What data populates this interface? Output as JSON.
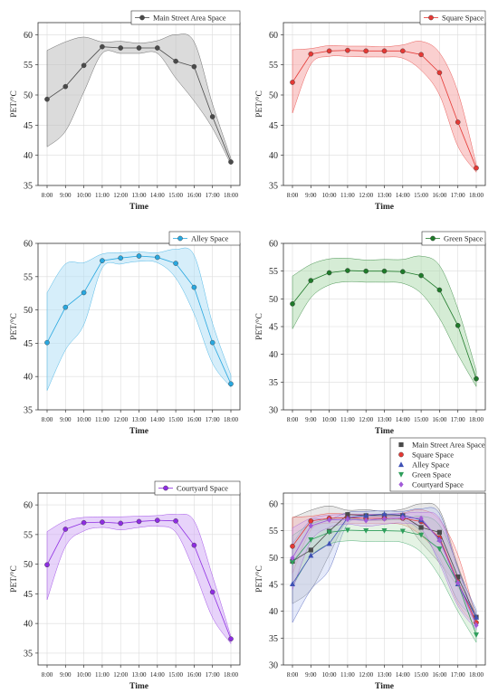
{
  "shared": {
    "x": [
      "8:00",
      "9:00",
      "10:00",
      "11:00",
      "12:00",
      "13:00",
      "14:00",
      "15:00",
      "16:00",
      "17:00",
      "18:00"
    ],
    "xlabel": "Time",
    "ylabel": "PET/°C"
  },
  "chart_data": [
    {
      "id": "main-street",
      "type": "line",
      "legend": [
        "Main Street Area Space"
      ],
      "ylim": [
        35,
        62
      ],
      "yticks": [
        35,
        40,
        45,
        50,
        55,
        60
      ],
      "series": [
        {
          "name": "Main Street Area Space",
          "color": "#4a4a4a",
          "fill": "#bdbdbd",
          "values": [
            49.3,
            51.4,
            54.9,
            58.0,
            57.8,
            57.8,
            57.8,
            55.6,
            54.7,
            46.4,
            38.9
          ],
          "upper": [
            57.4,
            58.8,
            59.6,
            58.8,
            58.9,
            58.6,
            59.0,
            60.0,
            58.8,
            48.5,
            39.5
          ],
          "lower": [
            41.4,
            44.0,
            50.5,
            56.9,
            56.9,
            56.9,
            56.9,
            52.8,
            49.0,
            44.5,
            38.5
          ]
        }
      ]
    },
    {
      "id": "square",
      "type": "line",
      "legend": [
        "Square Space"
      ],
      "ylim": [
        35,
        62
      ],
      "yticks": [
        35,
        40,
        45,
        50,
        55,
        60
      ],
      "series": [
        {
          "name": "Square Space",
          "color": "#e53935",
          "fill": "#f6a7a7",
          "values": [
            52.1,
            56.8,
            57.3,
            57.4,
            57.3,
            57.3,
            57.3,
            56.7,
            53.7,
            45.5,
            37.9
          ],
          "upper": [
            57.5,
            57.7,
            58.2,
            58.1,
            58.1,
            58.0,
            58.3,
            58.9,
            57.0,
            50.5,
            38.5
          ],
          "lower": [
            47.0,
            55.1,
            56.4,
            56.4,
            56.3,
            56.3,
            56.1,
            54.1,
            50.0,
            41.5,
            37.2
          ]
        }
      ]
    },
    {
      "id": "alley",
      "type": "line",
      "legend": [
        "Alley  Space"
      ],
      "ylim": [
        35,
        60
      ],
      "yticks": [
        35,
        40,
        45,
        50,
        55,
        60
      ],
      "series": [
        {
          "name": "Alley  Space",
          "color": "#29a8e0",
          "fill": "#b5e0f5",
          "values": [
            45.1,
            50.4,
            52.6,
            57.4,
            57.8,
            58.1,
            57.9,
            57.0,
            53.4,
            45.1,
            38.9
          ],
          "upper": [
            52.6,
            56.9,
            57.1,
            58.4,
            58.6,
            58.7,
            58.6,
            59.1,
            58.2,
            48.0,
            40.2
          ],
          "lower": [
            37.9,
            44.0,
            47.8,
            56.3,
            56.9,
            57.3,
            57.1,
            54.8,
            49.4,
            42.0,
            38.4
          ]
        }
      ]
    },
    {
      "id": "green",
      "type": "line",
      "legend": [
        "Green Space"
      ],
      "ylim": [
        30,
        60
      ],
      "yticks": [
        30,
        35,
        40,
        45,
        50,
        55,
        60
      ],
      "series": [
        {
          "name": "Green Space",
          "color": "#1f7a2a",
          "fill": "#b2dcb2",
          "values": [
            49.1,
            53.3,
            54.7,
            55.1,
            55.0,
            55.0,
            54.9,
            54.2,
            51.6,
            45.2,
            35.6
          ],
          "upper": [
            54.1,
            56.2,
            57.2,
            57.3,
            57.0,
            57.1,
            57.1,
            57.7,
            56.0,
            48.2,
            37.0
          ],
          "lower": [
            44.6,
            50.2,
            52.5,
            53.1,
            53.0,
            53.0,
            52.8,
            51.0,
            46.5,
            40.0,
            34.2
          ]
        }
      ]
    },
    {
      "id": "courtyard",
      "type": "line",
      "legend": [
        "Courtyard Space"
      ],
      "ylim": [
        33,
        62
      ],
      "yticks": [
        35,
        40,
        45,
        50,
        55,
        60
      ],
      "series": [
        {
          "name": "Courtyard Space",
          "color": "#8e2de2",
          "fill": "#d4aef5",
          "values": [
            49.9,
            55.9,
            57.0,
            57.1,
            56.9,
            57.2,
            57.4,
            57.3,
            53.2,
            45.3,
            37.4
          ],
          "upper": [
            55.5,
            57.3,
            57.9,
            58.0,
            58.0,
            58.1,
            58.2,
            58.4,
            57.3,
            48.0,
            37.8
          ],
          "lower": [
            44.0,
            53.0,
            55.6,
            56.2,
            55.8,
            56.2,
            56.4,
            55.4,
            48.9,
            41.0,
            36.6
          ]
        }
      ]
    },
    {
      "id": "combined",
      "type": "line",
      "legend": [
        "Main Street Area Space",
        "Square Space",
        "Alley Space",
        "Green Space",
        "Courtyard Space"
      ],
      "ylim": [
        30,
        62
      ],
      "yticks": [
        30,
        35,
        40,
        45,
        50,
        55,
        60
      ],
      "series": [
        {
          "name": "Main Street Area Space",
          "color": "#4a4a4a",
          "fill": "#bdbdbd",
          "marker": "square",
          "values": [
            49.3,
            51.4,
            54.9,
            58.0,
            57.8,
            57.8,
            57.8,
            55.6,
            54.7,
            46.4,
            38.9
          ],
          "upper": [
            57.4,
            58.8,
            59.6,
            58.8,
            58.9,
            58.6,
            59.0,
            60.0,
            58.8,
            48.5,
            39.5
          ],
          "lower": [
            41.4,
            44.0,
            50.5,
            56.9,
            56.9,
            56.9,
            56.9,
            52.8,
            49.0,
            44.5,
            38.5
          ]
        },
        {
          "name": "Square Space",
          "color": "#e53935",
          "fill": "#f6a7a7",
          "marker": "circle",
          "values": [
            52.1,
            56.8,
            57.3,
            57.4,
            57.3,
            57.3,
            57.3,
            56.7,
            53.7,
            45.5,
            37.9
          ],
          "upper": [
            57.5,
            57.7,
            58.2,
            58.1,
            58.1,
            58.0,
            58.3,
            58.9,
            57.0,
            50.5,
            38.5
          ],
          "lower": [
            47.0,
            55.1,
            56.4,
            56.4,
            56.3,
            56.3,
            56.1,
            54.1,
            50.0,
            41.5,
            37.2
          ]
        },
        {
          "name": "Alley Space",
          "color": "#3f51b5",
          "fill": "#b5c4f0",
          "marker": "triangle-up",
          "values": [
            45.1,
            50.4,
            52.6,
            57.4,
            57.8,
            58.1,
            57.9,
            57.0,
            53.4,
            45.1,
            38.9
          ],
          "upper": [
            52.6,
            56.9,
            57.1,
            58.4,
            58.6,
            58.7,
            58.6,
            59.1,
            58.2,
            48.0,
            40.2
          ],
          "lower": [
            37.9,
            44.0,
            47.8,
            56.3,
            56.9,
            57.3,
            57.1,
            54.8,
            49.4,
            42.0,
            38.4
          ]
        },
        {
          "name": "Green Space",
          "color": "#2e9e5b",
          "fill": "#b2dcb2",
          "marker": "triangle-down",
          "values": [
            49.1,
            53.3,
            54.7,
            55.1,
            55.0,
            55.0,
            54.9,
            54.2,
            51.6,
            45.2,
            35.6
          ],
          "upper": [
            54.1,
            56.2,
            57.2,
            57.3,
            57.0,
            57.1,
            57.1,
            57.7,
            56.0,
            48.2,
            37.0
          ],
          "lower": [
            44.6,
            50.2,
            52.5,
            53.1,
            53.0,
            53.0,
            52.8,
            51.0,
            46.5,
            40.0,
            34.2
          ]
        },
        {
          "name": "Courtyard Space",
          "color": "#a15ad8",
          "fill": "#d4aef5",
          "marker": "diamond",
          "values": [
            49.9,
            55.9,
            57.0,
            57.1,
            56.9,
            57.2,
            57.4,
            57.3,
            53.2,
            45.3,
            37.4
          ],
          "upper": [
            55.5,
            57.3,
            57.9,
            58.0,
            58.0,
            58.1,
            58.2,
            58.4,
            57.3,
            48.0,
            37.8
          ],
          "lower": [
            44.0,
            53.0,
            55.6,
            56.2,
            55.8,
            56.2,
            56.4,
            55.4,
            48.9,
            41.0,
            36.6
          ]
        }
      ]
    }
  ]
}
